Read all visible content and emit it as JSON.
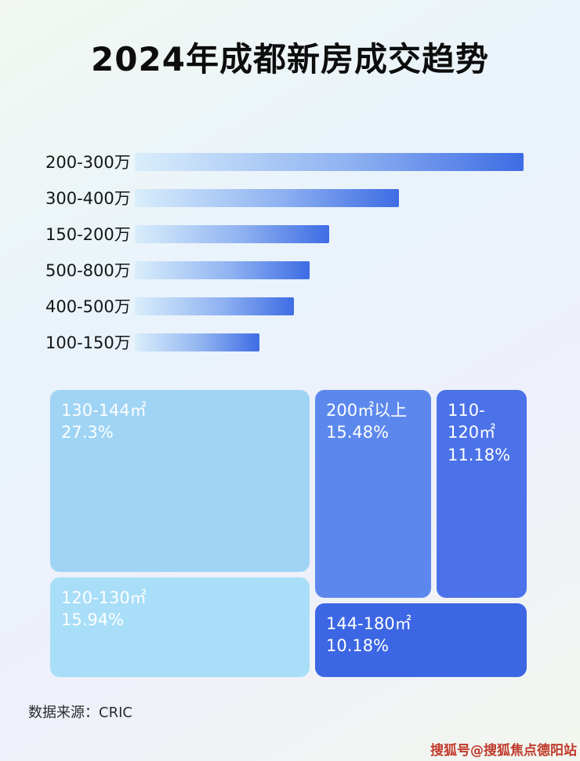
{
  "page": {
    "title": "2024年成都新房成交趋势",
    "source_label": "数据来源：CRIC",
    "watermark": "搜狐号@搜狐焦点德阳站"
  },
  "chart_data": [
    {
      "type": "bar",
      "title": "2024年成都新房成交趋势",
      "orientation": "horizontal",
      "categories": [
        "200-300万",
        "300-400万",
        "150-200万",
        "500-800万",
        "400-500万",
        "100-150万"
      ],
      "values": [
        100,
        68,
        50,
        45,
        41,
        32
      ],
      "value_note": "no numeric axis shown; values are relative bar lengths as % of longest bar",
      "xlabel": "",
      "ylabel": "",
      "grid": false,
      "legend": false,
      "bar_gradient": [
        "#d9eefb",
        "#3e6ce4"
      ]
    },
    {
      "type": "treemap",
      "title": "",
      "items": [
        {
          "label": "130-144㎡",
          "value": 27.3,
          "display": "27.3%",
          "color": "#9fd4f4"
        },
        {
          "label": "120-130㎡",
          "value": 15.94,
          "display": "15.94%",
          "color": "#a9def8"
        },
        {
          "label": "200㎡以上",
          "value": 15.48,
          "display": "15.48%",
          "color": "#5c88ee"
        },
        {
          "label": "110-120㎡",
          "value": 11.18,
          "display": "11.18%",
          "color": "#4b72e8"
        },
        {
          "label": "144-180㎡",
          "value": 10.18,
          "display": "10.18%",
          "color": "#3c66e3"
        }
      ]
    }
  ]
}
